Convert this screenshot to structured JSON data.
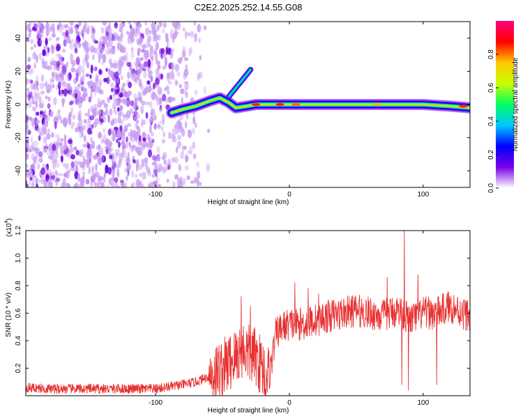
{
  "figure": {
    "title": "C2E2.2025.252.14.55.G08"
  },
  "chart_data": [
    {
      "type": "heatmap",
      "title": "C2E2.2025.252.14.55.G08",
      "xlabel": "Height of straight line (km)",
      "ylabel": "Frequency (Hz)",
      "xlim": [
        -197,
        135
      ],
      "ylim": [
        -50,
        50
      ],
      "x_ticks": [
        -100,
        0,
        100
      ],
      "y_ticks": [
        -40,
        -20,
        0,
        20,
        40
      ],
      "grid": false,
      "colorbar": {
        "label": "Normalized spectral amplitude",
        "range": [
          0,
          1
        ],
        "ticks": [
          0.0,
          0.2,
          0.4,
          0.6,
          0.8
        ],
        "colors": [
          "#ffffff",
          "#7a00e6",
          "#0000ff",
          "#00c8ff",
          "#00ff60",
          "#c8ff00",
          "#ffc800",
          "#ff0000",
          "#ff0080"
        ]
      },
      "ridge": [
        {
          "x": -88,
          "f": -5
        },
        {
          "x": -80,
          "f": -3
        },
        {
          "x": -70,
          "f": -1
        },
        {
          "x": -60,
          "f": 2
        },
        {
          "x": -52,
          "f": 4
        },
        {
          "x": -45,
          "f": 1
        },
        {
          "x": -40,
          "f": -2
        },
        {
          "x": -32,
          "f": -1
        },
        {
          "x": -25,
          "f": 0
        },
        {
          "x": -10,
          "f": 0
        },
        {
          "x": 0,
          "f": 0
        },
        {
          "x": 20,
          "f": 0
        },
        {
          "x": 50,
          "f": 0
        },
        {
          "x": 80,
          "f": 0
        },
        {
          "x": 100,
          "f": 0
        },
        {
          "x": 120,
          "f": -1
        },
        {
          "x": 135,
          "f": -2
        }
      ],
      "branch": [
        {
          "x": -45,
          "f": 5
        },
        {
          "x": -38,
          "f": 12
        },
        {
          "x": -32,
          "f": 18
        },
        {
          "x": -29,
          "f": 21
        }
      ],
      "peaks": [
        {
          "x": -25,
          "f": 0,
          "a": 1.0
        },
        {
          "x": -7,
          "f": 0,
          "a": 1.0
        },
        {
          "x": 5,
          "f": 0,
          "a": 0.95
        },
        {
          "x": 66,
          "f": 0,
          "a": 0.9
        },
        {
          "x": 130,
          "f": -1,
          "a": 1.0
        }
      ]
    },
    {
      "type": "line",
      "title": "",
      "xlabel": "Height of straight line (km)",
      "ylabel": "SNR (10 * v/v)",
      "y_scale_label_base": "(x10",
      "y_scale_label_exp": "4",
      "y_scale_label_close": ")",
      "xlim": [
        -197,
        135
      ],
      "ylim": [
        0,
        1.2
      ],
      "x_ticks": [
        -100,
        0,
        100
      ],
      "y_ticks": [
        0.2,
        0.4,
        0.6,
        0.8,
        1.0,
        1.2
      ],
      "grid": false,
      "series": [
        {
          "color": "#e83030",
          "x": [
            -197,
            -180,
            -160,
            -140,
            -120,
            -100,
            -80,
            -70,
            -60,
            -50,
            -40,
            -35,
            -30,
            -25,
            -20,
            -15,
            -10,
            -5,
            0,
            10,
            20,
            30,
            40,
            50,
            60,
            70,
            80,
            85,
            90,
            100,
            110,
            120,
            130,
            135
          ],
          "y": [
            0.06,
            0.05,
            0.05,
            0.05,
            0.05,
            0.05,
            0.08,
            0.1,
            0.14,
            0.2,
            0.28,
            0.35,
            0.3,
            0.28,
            0.2,
            0.15,
            0.45,
            0.5,
            0.52,
            0.52,
            0.55,
            0.58,
            0.6,
            0.62,
            0.6,
            0.58,
            0.62,
            0.6,
            0.55,
            0.6,
            0.6,
            0.65,
            0.6,
            0.58
          ]
        }
      ],
      "spikes": [
        {
          "x": -36,
          "y": 0.72
        },
        {
          "x": -29,
          "y": 0.65
        },
        {
          "x": -18,
          "y": 0.05
        },
        {
          "x": 4,
          "y": 0.82
        },
        {
          "x": 14,
          "y": 0.78
        },
        {
          "x": 22,
          "y": 0.74
        },
        {
          "x": 73,
          "y": 0.86
        },
        {
          "x": 84,
          "y": 0.08
        },
        {
          "x": 86,
          "y": 1.2
        },
        {
          "x": 89,
          "y": 0.04
        },
        {
          "x": 96,
          "y": 0.88
        },
        {
          "x": 110,
          "y": 0.08
        }
      ]
    }
  ]
}
